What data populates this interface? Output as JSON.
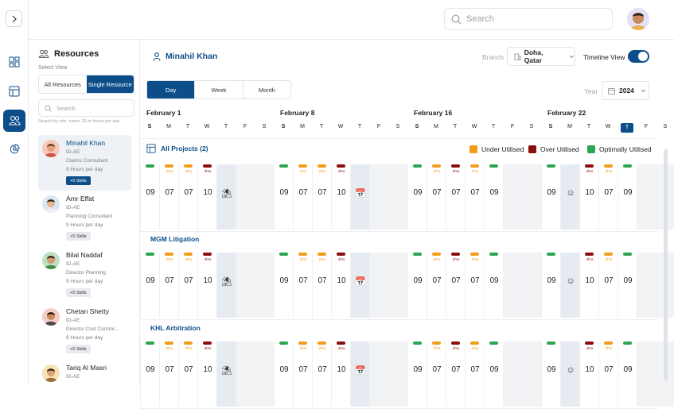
{
  "header": {
    "search_placeholder": "Search"
  },
  "sidebar": {
    "title": "Resources",
    "select_view": "Select View",
    "views": [
      "All Resources",
      "Single Resource"
    ],
    "search_placeholder": "Search",
    "search_hint": "Search by role, name, ID or hours per day",
    "resources": [
      {
        "name": "Minahil Khan",
        "id": "ID-AE",
        "role": "Claims Consultant",
        "hours": "9 Hours per day",
        "skills": "+5 Skills",
        "selected": true
      },
      {
        "name": "Amr Effat",
        "id": "ID-AE",
        "role": "Planning Consultant",
        "hours": "9 Hours per day",
        "skills": "+5 Skills"
      },
      {
        "name": "Bilal Naddaf",
        "id": "ID-AE",
        "role": "Director Planning",
        "hours": "9 Hours per day",
        "skills": "+5 Skills"
      },
      {
        "name": "Chetan Shetty",
        "id": "ID-AE",
        "role": "Director Cost Control...",
        "hours": "9 Hours per day",
        "skills": "+5 Skills"
      },
      {
        "name": "Tariq Al Masri",
        "id": "ID-AE"
      }
    ]
  },
  "main": {
    "resource_name": "Minahil Khan",
    "branch_label": "Branch",
    "branch_value": "Doha, Qatar",
    "timeline_label": "Timeline View",
    "tabs": [
      "Day",
      "Week",
      "Month"
    ],
    "year_label": "Year",
    "year_value": "2024",
    "weeks": [
      "February  1",
      "February  8",
      "February  16",
      "February  22"
    ],
    "day_letters": [
      "S",
      "M",
      "T",
      "W",
      "T",
      "F",
      "S"
    ],
    "today_label": "T",
    "all_projects": "All Projects (2)",
    "legend": [
      {
        "label": "Under Utilised",
        "color": "#f29d1a"
      },
      {
        "label": "Over Utilised",
        "color": "#8b0d0d"
      },
      {
        "label": "Optimally Utilised",
        "color": "#2aa650"
      }
    ],
    "projects": [
      "MGM Litigation",
      "KHL Arbitration"
    ],
    "day_values": [
      "09",
      "07",
      "07",
      "10"
    ],
    "day_hours": [
      "",
      "2hrs",
      "2hrs",
      "4hrs"
    ],
    "day_status": [
      "#2aa650",
      "#f29d1a",
      "#f29d1a",
      "#8b0d0d"
    ],
    "fifth_value": "07",
    "fifth_hours": "3hrs",
    "fifth_status": "#f29d1a",
    "w3_values": [
      "09",
      "07",
      "07",
      "07",
      "09"
    ],
    "w3_hours": [
      "",
      "2hrs",
      "4hrs",
      "2hrs",
      ""
    ],
    "w3_status": [
      "#2aa650",
      "#f29d1a",
      "#8b0d0d",
      "#f29d1a",
      "#2aa650"
    ],
    "w4_values": [
      "09",
      "10",
      "07",
      "09"
    ],
    "w4_hours": [
      "",
      "4hrs",
      "3hrs",
      ""
    ],
    "w4_status": [
      "#2aa650",
      "#8b0d0d",
      "#f29d1a",
      "#2aa650"
    ]
  }
}
